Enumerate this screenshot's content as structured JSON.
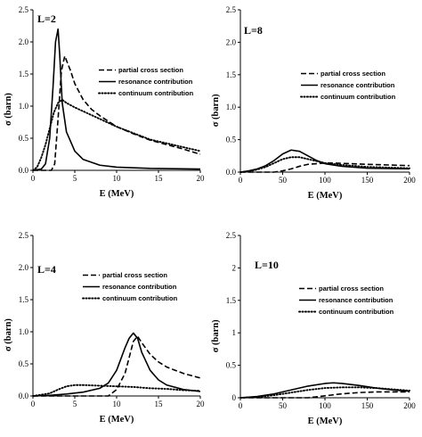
{
  "chart_data": [
    {
      "type": "line",
      "panel_label": "L=2",
      "xlabel": "E  (MeV)",
      "ylabel": "σ (barn)",
      "xlim": [
        0,
        20
      ],
      "ylim": [
        0,
        2.5
      ],
      "xticks": [
        0,
        5,
        10,
        15,
        20
      ],
      "yticks": [
        0.0,
        0.5,
        1.0,
        1.5,
        2.0,
        2.5
      ],
      "ytick_labels": [
        "0.0",
        "0.5",
        "1.0",
        "1.5",
        "2.0",
        "2.5"
      ],
      "legend_position": "upper-right",
      "series": [
        {
          "name": "partial cross section",
          "style": "dashed",
          "x": [
            0,
            2.2,
            2.6,
            3.0,
            3.4,
            3.8,
            4.5,
            5,
            6,
            7,
            8,
            10,
            12,
            14,
            16,
            18,
            20
          ],
          "y": [
            0,
            0,
            0.1,
            0.8,
            1.55,
            1.78,
            1.55,
            1.35,
            1.1,
            0.95,
            0.85,
            0.68,
            0.57,
            0.47,
            0.4,
            0.33,
            0.25
          ]
        },
        {
          "name": "resonance contribution",
          "style": "solid",
          "x": [
            0,
            1,
            1.5,
            2.0,
            2.4,
            2.7,
            3.0,
            3.2,
            3.5,
            4,
            5,
            6,
            8,
            10,
            14,
            20
          ],
          "y": [
            0,
            0.02,
            0.1,
            0.5,
            1.3,
            2.0,
            2.2,
            1.8,
            1.05,
            0.6,
            0.3,
            0.17,
            0.08,
            0.05,
            0.03,
            0.02
          ]
        },
        {
          "name": "continuum contribution",
          "style": "dotted",
          "x": [
            0,
            0.5,
            1,
            1.5,
            2,
            2.5,
            3,
            3.5,
            4,
            5,
            6,
            8,
            10,
            12,
            14,
            16,
            18,
            20
          ],
          "y": [
            0,
            0.05,
            0.2,
            0.4,
            0.65,
            0.9,
            1.05,
            1.1,
            1.05,
            0.98,
            0.92,
            0.8,
            0.68,
            0.58,
            0.48,
            0.42,
            0.36,
            0.3
          ]
        }
      ]
    },
    {
      "type": "line",
      "panel_label": "L=8",
      "xlabel": "E  (MeV)",
      "ylabel": "σ (barn)",
      "xlim": [
        0,
        200
      ],
      "ylim": [
        0,
        2.5
      ],
      "xticks": [
        0,
        50,
        100,
        150,
        200
      ],
      "yticks": [
        0.0,
        0.5,
        1.0,
        1.5,
        2.0,
        2.5
      ],
      "ytick_labels": [
        "0.0",
        "0.5",
        "1.0",
        "1.5",
        "2.0",
        "2.5"
      ],
      "legend_position": "upper-right",
      "series": [
        {
          "name": "partial cross section",
          "style": "dashed",
          "x": [
            0,
            40,
            50,
            60,
            70,
            80,
            90,
            100,
            110,
            130,
            150,
            175,
            200
          ],
          "y": [
            0,
            0,
            0.02,
            0.05,
            0.09,
            0.12,
            0.13,
            0.14,
            0.14,
            0.13,
            0.12,
            0.11,
            0.1
          ]
        },
        {
          "name": "resonance contribution",
          "style": "solid",
          "x": [
            0,
            10,
            20,
            30,
            40,
            50,
            60,
            70,
            80,
            90,
            100,
            120,
            150,
            200
          ],
          "y": [
            0,
            0.02,
            0.05,
            0.1,
            0.18,
            0.28,
            0.34,
            0.32,
            0.25,
            0.18,
            0.13,
            0.09,
            0.06,
            0.05
          ]
        },
        {
          "name": "continuum contribution",
          "style": "dotted",
          "x": [
            0,
            10,
            20,
            30,
            40,
            50,
            60,
            70,
            80,
            90,
            100,
            120,
            150,
            200
          ],
          "y": [
            0,
            0.01,
            0.04,
            0.08,
            0.14,
            0.2,
            0.23,
            0.23,
            0.2,
            0.17,
            0.14,
            0.11,
            0.08,
            0.06
          ]
        }
      ]
    },
    {
      "type": "line",
      "panel_label": "L=4",
      "xlabel": "E  (MeV)",
      "ylabel": "σ (barn)",
      "xlim": [
        0,
        20
      ],
      "ylim": [
        0,
        2.5
      ],
      "xticks": [
        0,
        5,
        10,
        15,
        20
      ],
      "yticks": [
        0.0,
        0.5,
        1.0,
        1.5,
        2.0,
        2.5
      ],
      "ytick_labels": [
        "0.0",
        "0.5",
        "1.0",
        "1.5",
        "2.0",
        "2.5"
      ],
      "legend_position": "upper-right",
      "series": [
        {
          "name": "partial cross section",
          "style": "dashed",
          "x": [
            0,
            9,
            10,
            11,
            11.5,
            12,
            12.5,
            13,
            14,
            15,
            16,
            18,
            20
          ],
          "y": [
            0,
            0,
            0.1,
            0.35,
            0.6,
            0.85,
            0.93,
            0.83,
            0.65,
            0.53,
            0.45,
            0.35,
            0.28
          ]
        },
        {
          "name": "resonance contribution",
          "style": "solid",
          "x": [
            0,
            2,
            4,
            6,
            8,
            9,
            10,
            11,
            11.5,
            12,
            12.5,
            13,
            14,
            15,
            16,
            18,
            20
          ],
          "y": [
            0,
            0.01,
            0.03,
            0.06,
            0.12,
            0.2,
            0.4,
            0.75,
            0.9,
            0.98,
            0.9,
            0.68,
            0.4,
            0.25,
            0.17,
            0.1,
            0.07
          ]
        },
        {
          "name": "continuum contribution",
          "style": "dotted",
          "x": [
            0,
            2,
            3,
            4,
            5,
            6,
            8,
            10,
            12,
            14,
            16,
            18,
            20
          ],
          "y": [
            0,
            0.04,
            0.1,
            0.15,
            0.17,
            0.17,
            0.16,
            0.15,
            0.14,
            0.12,
            0.11,
            0.09,
            0.08
          ]
        }
      ]
    },
    {
      "type": "line",
      "panel_label": "L=10",
      "xlabel": "E  (MeV)",
      "ylabel": "σ (barn)",
      "xlim": [
        0,
        200
      ],
      "ylim": [
        0,
        2.5
      ],
      "xticks": [
        0,
        50,
        100,
        150,
        200
      ],
      "yticks": [
        0.0,
        0.5,
        1.0,
        1.5,
        2.0,
        2.5
      ],
      "ytick_labels": [
        "0",
        "0.5",
        "1",
        "1.5",
        "2",
        "2.5"
      ],
      "legend_position": "right",
      "series": [
        {
          "name": "partial cross section",
          "style": "dashed",
          "x": [
            0,
            80,
            100,
            120,
            140,
            160,
            180,
            200
          ],
          "y": [
            0,
            0,
            0.03,
            0.06,
            0.08,
            0.09,
            0.09,
            0.09
          ]
        },
        {
          "name": "resonance contribution",
          "style": "solid",
          "x": [
            0,
            20,
            40,
            60,
            80,
            100,
            110,
            120,
            140,
            160,
            180,
            200
          ],
          "y": [
            0,
            0.02,
            0.06,
            0.12,
            0.18,
            0.22,
            0.23,
            0.22,
            0.19,
            0.15,
            0.12,
            0.1
          ]
        },
        {
          "name": "continuum contribution",
          "style": "dotted",
          "x": [
            0,
            20,
            40,
            60,
            80,
            100,
            120,
            140,
            160,
            180,
            200
          ],
          "y": [
            0,
            0.01,
            0.04,
            0.08,
            0.12,
            0.15,
            0.16,
            0.16,
            0.15,
            0.13,
            0.11
          ]
        }
      ]
    }
  ]
}
